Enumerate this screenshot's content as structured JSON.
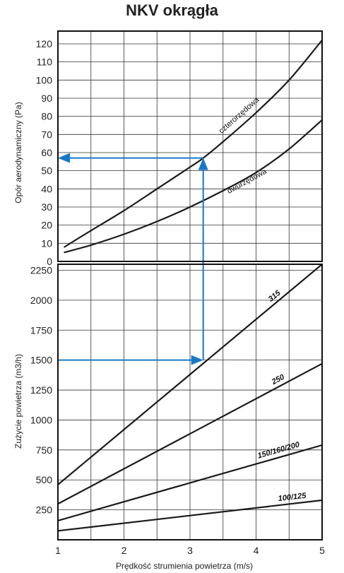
{
  "chart_data": {
    "title": "NKV okrągła",
    "type": "line",
    "xlabel": "Prędkość strumienia powietrza (m/s)",
    "xlim": [
      1,
      5
    ],
    "xticks": [
      "1",
      "2",
      "3",
      "4",
      "5"
    ],
    "panels": [
      {
        "id": "pressure",
        "ylabel": "Opór aerodynamiczny (Pa)",
        "ylim": [
          0,
          127
        ],
        "yticks": [
          "0",
          "10",
          "20",
          "30",
          "40",
          "50",
          "60",
          "70",
          "80",
          "90",
          "100",
          "110",
          "120"
        ],
        "ytick_values": [
          0,
          10,
          20,
          30,
          40,
          50,
          60,
          70,
          80,
          90,
          100,
          110,
          120
        ],
        "grid": true,
        "series": [
          {
            "name": "czterorzędowa",
            "x": [
              1.1,
              1.5,
              2.0,
              2.5,
              3.0,
              3.2,
              3.5,
              4.0,
              4.5,
              5.0
            ],
            "values": [
              8,
              17,
              28,
              40,
              52,
              57,
              66,
              82,
              100,
              122
            ]
          },
          {
            "name": "dwurzędowa",
            "x": [
              1.1,
              1.5,
              2.0,
              2.5,
              3.0,
              3.5,
              4.0,
              4.5,
              5.0
            ],
            "values": [
              5,
              9,
              15,
              22,
              30,
              39,
              49,
              62,
              78
            ]
          }
        ]
      },
      {
        "id": "flow",
        "ylabel": "Zużycie powietrza (m3/h)",
        "ylim": [
          0,
          2300
        ],
        "yticks": [
          "250",
          "500",
          "750",
          "1000",
          "1250",
          "1500",
          "1750",
          "2000",
          "2250"
        ],
        "ytick_values": [
          250,
          500,
          750,
          1000,
          1250,
          1500,
          1750,
          2000,
          2250
        ],
        "grid": true,
        "series": [
          {
            "name": "315",
            "x": [
              1,
              5
            ],
            "values": [
              460,
              2300
            ]
          },
          {
            "name": "250",
            "x": [
              1,
              5
            ],
            "values": [
              300,
              1470
            ]
          },
          {
            "name": "150/160/200",
            "x": [
              1,
              5
            ],
            "values": [
              160,
              790
            ]
          },
          {
            "name": "100/125",
            "x": [
              1,
              5
            ],
            "values": [
              75,
              330
            ]
          }
        ]
      }
    ],
    "reading_example": {
      "velocity": 3.2,
      "flow": 1500,
      "pressure": 57,
      "color": "#1878c8"
    },
    "colors": {
      "curve": "#1a1a1a",
      "grid": "#333333",
      "arrow": "#1878c8"
    }
  }
}
